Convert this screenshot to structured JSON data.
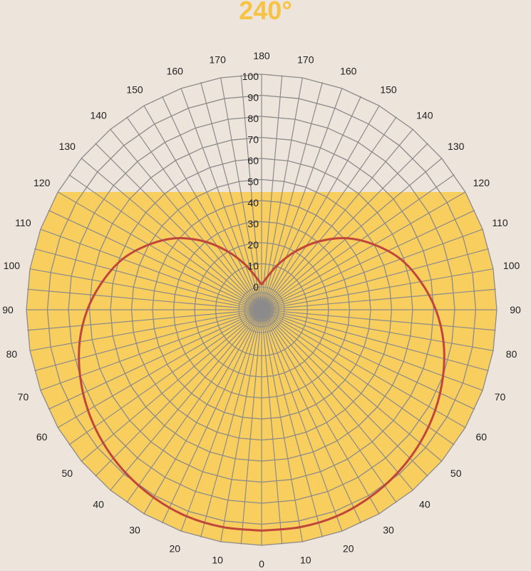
{
  "chart_data": {
    "type": "polar",
    "title": "240°",
    "angular_axis": {
      "ticks": [
        0,
        10,
        20,
        30,
        40,
        50,
        60,
        70,
        80,
        90,
        100,
        110,
        120,
        130,
        140,
        150,
        160,
        170,
        180
      ],
      "mirrored": true,
      "zero_at": "bottom",
      "direction": "symmetric-both-sides"
    },
    "radial_axis": {
      "range": [
        0,
        100
      ],
      "ticks": [
        0,
        10,
        20,
        30,
        40,
        50,
        60,
        70,
        80,
        90,
        100
      ],
      "label_position": "along-top-vertical"
    },
    "shaded_sector": {
      "coverage_degrees": 240,
      "from_angle": 120,
      "mirrored": true,
      "color": "#f8cf5f"
    },
    "series": [
      {
        "type": "line",
        "color": "#c0463a",
        "theta": [
          0,
          10,
          20,
          30,
          40,
          50,
          60,
          70,
          80,
          90,
          100,
          110,
          120,
          130,
          140,
          150,
          160,
          170,
          180
        ],
        "r": [
          93,
          93,
          92.5,
          91,
          89,
          86.5,
          83.5,
          80,
          76,
          71,
          65,
          58.5,
          50,
          41,
          30.5,
          20,
          11,
          4,
          0
        ]
      }
    ],
    "grid": true,
    "colors": {
      "background": "#ede4dc",
      "unshaded_fill": "#ede4dc",
      "grid_line": "#8c8a8a",
      "title": "#f6c344"
    }
  }
}
